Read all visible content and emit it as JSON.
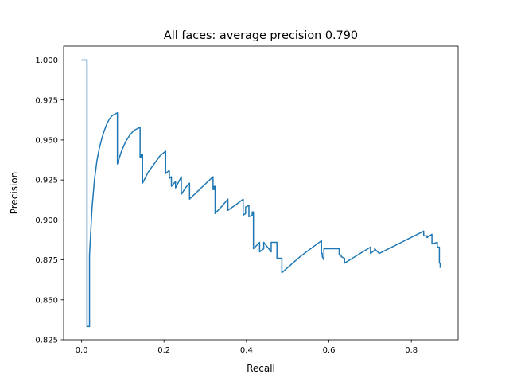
{
  "chart_data": {
    "type": "line",
    "title": "All faces: average precision 0.790",
    "xlabel": "Recall",
    "ylabel": "Precision",
    "xlim": [
      -0.0435,
      0.9135
    ],
    "ylim": [
      0.825,
      1.0087
    ],
    "xticks": [
      0.0,
      0.2,
      0.4,
      0.6,
      0.8
    ],
    "xtick_labels": [
      "0.0",
      "0.2",
      "0.4",
      "0.6",
      "0.8"
    ],
    "yticks": [
      0.825,
      0.85,
      0.875,
      0.9,
      0.925,
      0.95,
      0.975,
      1.0
    ],
    "ytick_labels": [
      "0.825",
      "0.850",
      "0.875",
      "0.900",
      "0.925",
      "0.950",
      "0.975",
      "1.000"
    ],
    "grid": false,
    "series": [
      {
        "color": "#1f77b4",
        "x": [
          0.0,
          0.0133,
          0.0133,
          0.0193,
          0.0193,
          0.0253,
          0.0313,
          0.0373,
          0.0433,
          0.0493,
          0.0553,
          0.0613,
          0.0673,
          0.0733,
          0.0793,
          0.087,
          0.087,
          0.0969,
          0.107,
          0.117,
          0.127,
          0.142,
          0.142,
          0.145,
          0.145,
          0.148,
          0.148,
          0.162,
          0.176,
          0.19,
          0.204,
          0.204,
          0.213,
          0.213,
          0.218,
          0.218,
          0.228,
          0.228,
          0.242,
          0.242,
          0.252,
          0.262,
          0.262,
          0.29,
          0.319,
          0.319,
          0.322,
          0.322,
          0.324,
          0.324,
          0.342,
          0.355,
          0.355,
          0.377,
          0.392,
          0.392,
          0.398,
          0.398,
          0.406,
          0.406,
          0.414,
          0.414,
          0.417,
          0.417,
          0.432,
          0.432,
          0.442,
          0.442,
          0.46,
          0.46,
          0.474,
          0.474,
          0.486,
          0.486,
          0.53,
          0.582,
          0.582,
          0.584,
          0.584,
          0.588,
          0.588,
          0.625,
          0.625,
          0.63,
          0.63,
          0.638,
          0.638,
          0.701,
          0.701,
          0.711,
          0.711,
          0.722,
          0.722,
          0.83,
          0.83,
          0.838,
          0.838,
          0.85,
          0.85,
          0.863,
          0.863,
          0.868,
          0.868,
          0.87,
          0.87
        ],
        "y": [
          1.0,
          1.0,
          0.8333,
          0.8333,
          0.878,
          0.907,
          0.925,
          0.937,
          0.945,
          0.951,
          0.956,
          0.96,
          0.963,
          0.965,
          0.966,
          0.967,
          0.935,
          0.943,
          0.949,
          0.953,
          0.956,
          0.958,
          0.939,
          0.939,
          0.941,
          0.941,
          0.923,
          0.93,
          0.935,
          0.94,
          0.943,
          0.929,
          0.931,
          0.926,
          0.927,
          0.921,
          0.924,
          0.92,
          0.927,
          0.916,
          0.92,
          0.923,
          0.913,
          0.92,
          0.927,
          0.919,
          0.919,
          0.921,
          0.921,
          0.904,
          0.909,
          0.913,
          0.906,
          0.91,
          0.913,
          0.903,
          0.904,
          0.908,
          0.909,
          0.902,
          0.903,
          0.905,
          0.905,
          0.882,
          0.886,
          0.88,
          0.882,
          0.886,
          0.88,
          0.886,
          0.886,
          0.876,
          0.876,
          0.867,
          0.877,
          0.887,
          0.879,
          0.879,
          0.877,
          0.875,
          0.882,
          0.882,
          0.878,
          0.878,
          0.877,
          0.876,
          0.873,
          0.883,
          0.879,
          0.881,
          0.882,
          0.879,
          0.879,
          0.893,
          0.89,
          0.89,
          0.889,
          0.891,
          0.885,
          0.886,
          0.883,
          0.883,
          0.873,
          0.873,
          0.87
        ]
      }
    ]
  }
}
